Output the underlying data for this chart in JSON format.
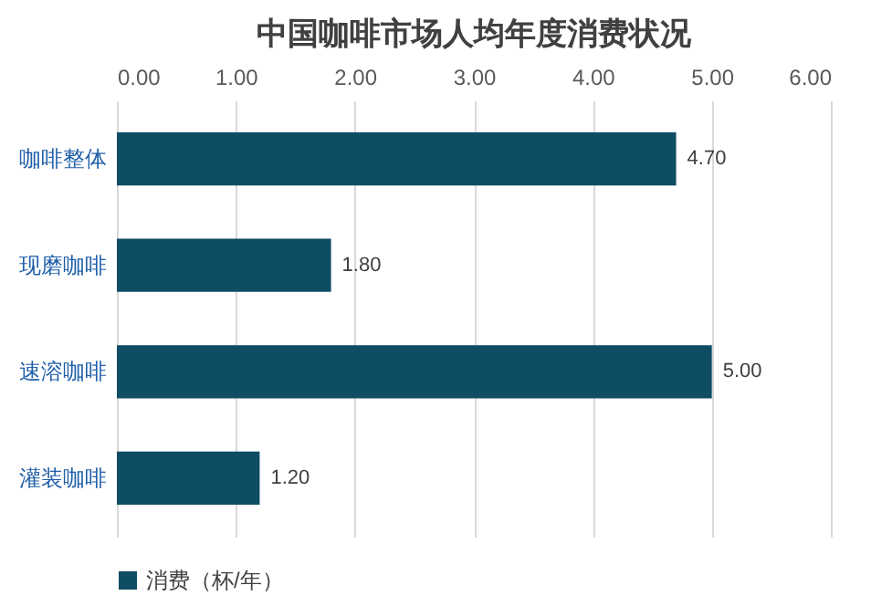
{
  "chart_data": {
    "type": "bar",
    "orientation": "horizontal",
    "title": "中国咖啡市场人均年度消费状况",
    "categories": [
      "咖啡整体",
      "现磨咖啡",
      "速溶咖啡",
      "灌装咖啡"
    ],
    "series": [
      {
        "name": "消费（杯/年）",
        "color": "#0e4d64",
        "values": [
          4.7,
          1.8,
          5.0,
          1.2
        ],
        "value_labels": [
          "4.70",
          "1.80",
          "5.00",
          "1.20"
        ]
      }
    ],
    "xlim": [
      0,
      6
    ],
    "xticks": [
      {
        "value": 0,
        "label": "0.00"
      },
      {
        "value": 1,
        "label": "1.00"
      },
      {
        "value": 2,
        "label": "2.00"
      },
      {
        "value": 3,
        "label": "3.00"
      },
      {
        "value": 4,
        "label": "4.00"
      },
      {
        "value": 5,
        "label": "5.00"
      },
      {
        "value": 6,
        "label": "6.00"
      }
    ],
    "grid": "x",
    "legend": "bottom"
  }
}
